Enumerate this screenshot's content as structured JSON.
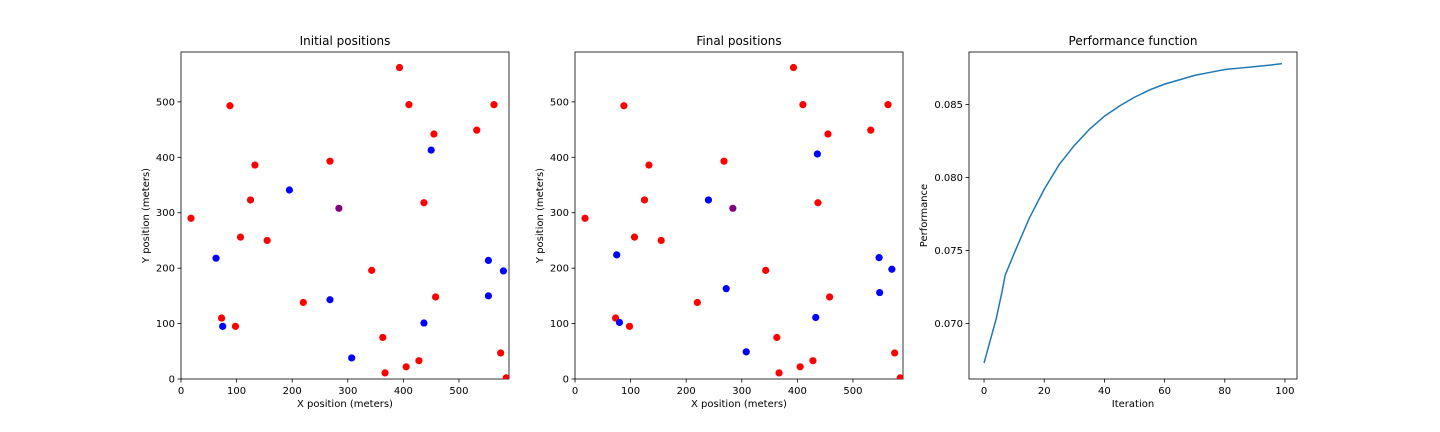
{
  "colors": {
    "red": "#ff0000",
    "blue": "#0000ff",
    "purple": "#800080",
    "line": "#1f77b4"
  },
  "chart_data": [
    {
      "type": "scatter",
      "title": "Initial positions",
      "xlabel": "X position (meters)",
      "ylabel": "Y position (meters)",
      "xlim": [
        0,
        590
      ],
      "ylim": [
        0,
        590
      ],
      "xticks": [
        0,
        100,
        200,
        300,
        400,
        500
      ],
      "yticks": [
        0,
        100,
        200,
        300,
        400,
        500
      ],
      "grid": false,
      "series": [
        {
          "color": "red",
          "points": [
            [
              18,
              290
            ],
            [
              88,
              493
            ],
            [
              133,
              386
            ],
            [
              125,
              323
            ],
            [
              107,
              256
            ],
            [
              155,
              250
            ],
            [
              268,
              393
            ],
            [
              343,
              196
            ],
            [
              220,
              138
            ],
            [
              73,
              110
            ],
            [
              98,
              95
            ],
            [
              363,
              75
            ],
            [
              367,
              11
            ],
            [
              405,
              22
            ],
            [
              428,
              33
            ],
            [
              458,
              148
            ],
            [
              437,
              318
            ],
            [
              455,
              442
            ],
            [
              410,
              495
            ],
            [
              393,
              562
            ],
            [
              532,
              449
            ],
            [
              563,
              495
            ],
            [
              575,
              47
            ],
            [
              585,
              2
            ]
          ]
        },
        {
          "color": "blue",
          "points": [
            [
              63,
              218
            ],
            [
              75,
              95
            ],
            [
              195,
              341
            ],
            [
              268,
              143
            ],
            [
              307,
              38
            ],
            [
              450,
              413
            ],
            [
              437,
              101
            ],
            [
              553,
              214
            ],
            [
              580,
              195
            ],
            [
              553,
              150
            ]
          ]
        },
        {
          "color": "purple",
          "points": [
            [
              284,
              308
            ]
          ]
        }
      ]
    },
    {
      "type": "scatter",
      "title": "Final positions",
      "xlabel": "X position (meters)",
      "ylabel": "Y position (meters)",
      "xlim": [
        0,
        590
      ],
      "ylim": [
        0,
        590
      ],
      "xticks": [
        0,
        100,
        200,
        300,
        400,
        500
      ],
      "yticks": [
        0,
        100,
        200,
        300,
        400,
        500
      ],
      "grid": false,
      "series": [
        {
          "color": "red",
          "points": [
            [
              18,
              290
            ],
            [
              88,
              493
            ],
            [
              133,
              386
            ],
            [
              125,
              323
            ],
            [
              107,
              256
            ],
            [
              155,
              250
            ],
            [
              268,
              393
            ],
            [
              343,
              196
            ],
            [
              220,
              138
            ],
            [
              73,
              110
            ],
            [
              98,
              95
            ],
            [
              363,
              75
            ],
            [
              367,
              11
            ],
            [
              405,
              22
            ],
            [
              428,
              33
            ],
            [
              458,
              148
            ],
            [
              437,
              318
            ],
            [
              455,
              442
            ],
            [
              410,
              495
            ],
            [
              393,
              562
            ],
            [
              532,
              449
            ],
            [
              563,
              495
            ],
            [
              575,
              47
            ],
            [
              585,
              2
            ]
          ]
        },
        {
          "color": "blue",
          "points": [
            [
              75,
              224
            ],
            [
              80,
              102
            ],
            [
              240,
              323
            ],
            [
              272,
              163
            ],
            [
              308,
              49
            ],
            [
              436,
              406
            ],
            [
              433,
              111
            ],
            [
              547,
              219
            ],
            [
              570,
              198
            ],
            [
              548,
              156
            ]
          ]
        },
        {
          "color": "purple",
          "points": [
            [
              284,
              308
            ]
          ]
        }
      ]
    },
    {
      "type": "line",
      "title": "Performance function",
      "xlabel": "Iteration",
      "ylabel": "Performance",
      "xlim": [
        -5,
        104
      ],
      "ylim": [
        0.0662,
        0.0886
      ],
      "xticks": [
        0,
        20,
        40,
        60,
        80,
        100
      ],
      "yticks": [
        0.07,
        0.075,
        0.08,
        0.085
      ],
      "ytick_labels": [
        "0.070",
        "0.075",
        "0.080",
        "0.085"
      ],
      "grid": false,
      "series": [
        {
          "color": "line",
          "x": [
            0,
            2,
            4,
            6,
            7,
            10,
            15,
            20,
            25,
            30,
            35,
            40,
            45,
            50,
            55,
            60,
            65,
            70,
            75,
            80,
            85,
            90,
            95,
            99
          ],
          "y": [
            0.0673,
            0.0688,
            0.0703,
            0.0722,
            0.0733,
            0.0748,
            0.0772,
            0.0792,
            0.0809,
            0.0822,
            0.0833,
            0.0842,
            0.0849,
            0.0855,
            0.086,
            0.0864,
            0.0867,
            0.087,
            0.0872,
            0.0874,
            0.0875,
            0.0876,
            0.0877,
            0.0878
          ]
        }
      ]
    }
  ]
}
